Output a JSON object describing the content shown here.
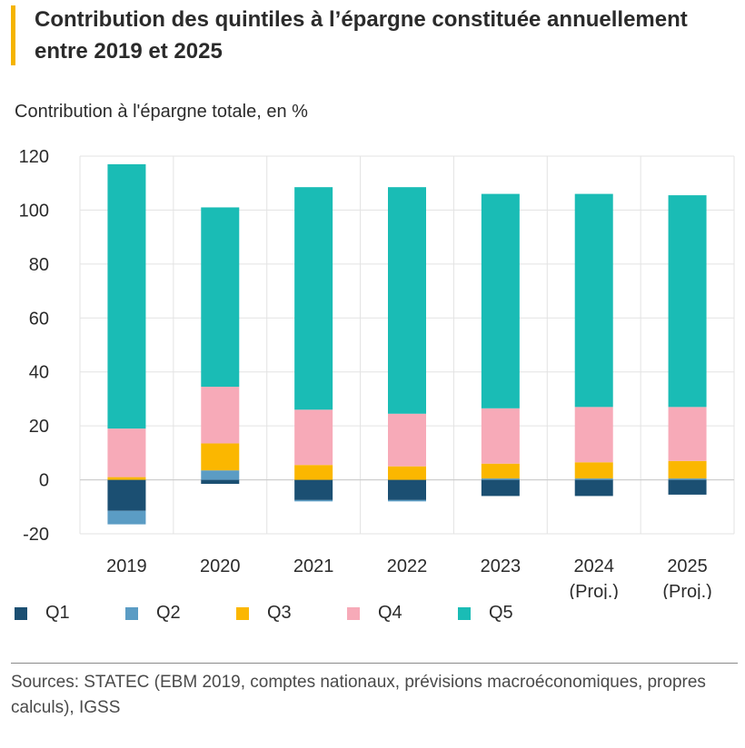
{
  "header": {
    "title": "Contribution des quintiles à l’épargne constituée annuellement entre 2019 et 2025"
  },
  "chart_data": {
    "type": "bar",
    "stacked": true,
    "title": "Contribution des quintiles à l’épargne constituée annuellement entre 2019 et 2025",
    "ylabel": "Contribution à l'épargne totale, en %",
    "xlabel": "",
    "categories": [
      [
        "2019"
      ],
      [
        "2020"
      ],
      [
        "2021"
      ],
      [
        "2022"
      ],
      [
        "2023"
      ],
      [
        "2024",
        "(Proj.)"
      ],
      [
        "2025",
        "(Proj.)"
      ]
    ],
    "ylim": [
      -20,
      120
    ],
    "yticks": [
      -20,
      0,
      20,
      40,
      60,
      80,
      100,
      120
    ],
    "grid": true,
    "legend_position": "bottom",
    "series": [
      {
        "name": "Q1",
        "color": "#1b4f72",
        "values": [
          -11.5,
          -1.5,
          -7.5,
          -7.5,
          -6,
          -6,
          -5.5
        ]
      },
      {
        "name": "Q2",
        "color": "#5b9cc4",
        "values": [
          -5,
          3.5,
          -0.5,
          -0.5,
          0.5,
          0.5,
          0.5
        ]
      },
      {
        "name": "Q3",
        "color": "#fbb700",
        "values": [
          1,
          10,
          5.5,
          5,
          5.5,
          6,
          6.5
        ]
      },
      {
        "name": "Q4",
        "color": "#f7aab8",
        "values": [
          18,
          21,
          20.5,
          19.5,
          20.5,
          20.5,
          20
        ]
      },
      {
        "name": "Q5",
        "color": "#1abcb5",
        "values": [
          98,
          66.5,
          82.5,
          84,
          79.5,
          79,
          78.5
        ]
      }
    ]
  },
  "source": {
    "text": "Sources: STATEC (EBM 2019, comptes nationaux, prévisions macroéconomiques, propres calculs), IGSS"
  }
}
